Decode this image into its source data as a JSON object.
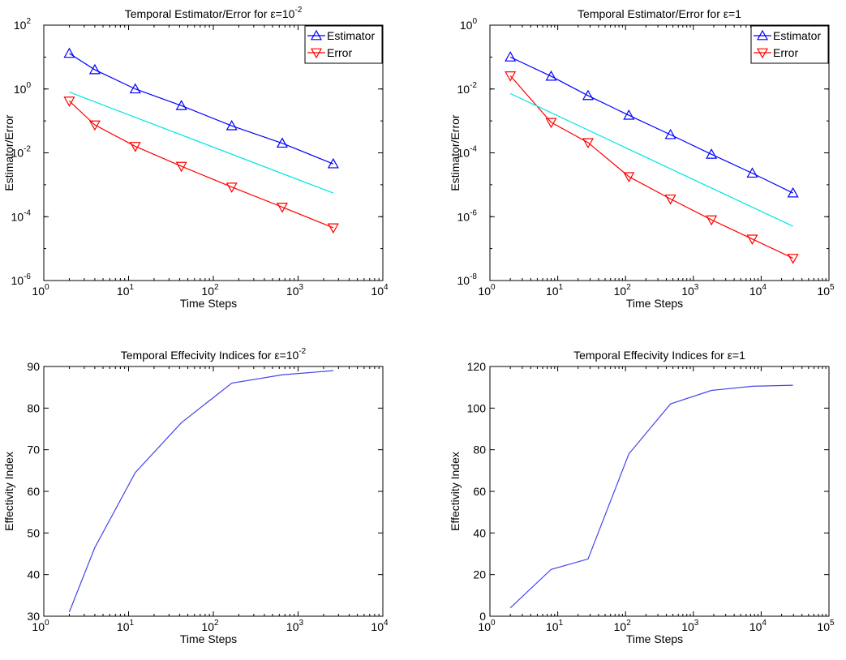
{
  "chart_data": [
    {
      "type": "line",
      "title": "Temporal Estimator/Error for ε=10",
      "title_sup": "-2",
      "xlabel": "Time Steps",
      "ylabel": "Estimator/Error",
      "xscale": "log",
      "yscale": "log",
      "xlim": [
        1,
        10000
      ],
      "ylim": [
        1e-06,
        100
      ],
      "x_ticks": [
        1,
        10,
        100,
        1000,
        10000
      ],
      "x_tick_labels": [
        {
          "base": "10",
          "exp": "0"
        },
        {
          "base": "10",
          "exp": "1"
        },
        {
          "base": "10",
          "exp": "2"
        },
        {
          "base": "10",
          "exp": "3"
        },
        {
          "base": "10",
          "exp": "4"
        }
      ],
      "y_ticks": [
        1e-06,
        0.0001,
        0.01,
        1,
        100
      ],
      "y_tick_labels": [
        {
          "base": "10",
          "exp": "-6"
        },
        {
          "base": "10",
          "exp": "-4"
        },
        {
          "base": "10",
          "exp": "-2"
        },
        {
          "base": "10",
          "exp": "0"
        },
        {
          "base": "10",
          "exp": "2"
        }
      ],
      "legend_position": "top-right",
      "grid": false,
      "series": [
        {
          "name": "Estimator",
          "color": "#0000ff",
          "marker": "triangle-up",
          "x": [
            2,
            4,
            12,
            42,
            165,
            650,
            2600
          ],
          "y": [
            13,
            4,
            1,
            0.3,
            0.07,
            0.02,
            0.0045
          ]
        },
        {
          "name": "Error",
          "color": "#ff0000",
          "marker": "triangle-down",
          "x": [
            2,
            4,
            12,
            42,
            165,
            650,
            2600
          ],
          "y": [
            0.42,
            0.075,
            0.016,
            0.0038,
            0.00085,
            0.0002,
            4.5e-05
          ]
        },
        {
          "name": "",
          "color": "#00e5e5",
          "marker": "none",
          "legend": false,
          "x": [
            2,
            2600
          ],
          "y": [
            0.8,
            0.00055
          ]
        }
      ]
    },
    {
      "type": "line",
      "title": "Temporal Estimator/Error for ε=1",
      "title_sup": "",
      "xlabel": "Time Steps",
      "ylabel": "Estimator/Error",
      "xscale": "log",
      "yscale": "log",
      "xlim": [
        1,
        100000
      ],
      "ylim": [
        1e-08,
        1
      ],
      "x_ticks": [
        1,
        10,
        100,
        1000,
        10000,
        100000
      ],
      "x_tick_labels": [
        {
          "base": "10",
          "exp": "0"
        },
        {
          "base": "10",
          "exp": "1"
        },
        {
          "base": "10",
          "exp": "2"
        },
        {
          "base": "10",
          "exp": "3"
        },
        {
          "base": "10",
          "exp": "4"
        },
        {
          "base": "10",
          "exp": "5"
        }
      ],
      "y_ticks": [
        1e-08,
        1e-06,
        0.0001,
        0.01,
        1
      ],
      "y_tick_labels": [
        {
          "base": "10",
          "exp": "-8"
        },
        {
          "base": "10",
          "exp": "-6"
        },
        {
          "base": "10",
          "exp": "-4"
        },
        {
          "base": "10",
          "exp": "-2"
        },
        {
          "base": "10",
          "exp": "0"
        }
      ],
      "legend_position": "top-right",
      "grid": false,
      "series": [
        {
          "name": "Estimator",
          "color": "#0000ff",
          "marker": "triangle-up",
          "x": [
            2,
            8,
            28,
            112,
            460,
            1850,
            7400,
            29500
          ],
          "y": [
            0.1,
            0.025,
            0.0062,
            0.0015,
            0.00037,
            9e-05,
            2.3e-05,
            5.5e-06
          ]
        },
        {
          "name": "Error",
          "color": "#ff0000",
          "marker": "triangle-down",
          "x": [
            2,
            8,
            28,
            112,
            460,
            1850,
            7400,
            29500
          ],
          "y": [
            0.026,
            0.0009,
            0.00021,
            1.8e-05,
            3.6e-06,
            8e-07,
            2e-07,
            5e-08
          ]
        },
        {
          "name": "",
          "color": "#00e5e5",
          "marker": "none",
          "legend": false,
          "x": [
            2,
            29500
          ],
          "y": [
            0.0072,
            5e-07
          ]
        }
      ]
    },
    {
      "type": "line",
      "title": "Temporal Effecivity Indices for ε=10",
      "title_sup": "-2",
      "xlabel": "Time Steps",
      "ylabel": "Effectivity Index",
      "xscale": "log",
      "yscale": "linear",
      "xlim": [
        1,
        10000
      ],
      "ylim": [
        30,
        90
      ],
      "x_ticks": [
        1,
        10,
        100,
        1000,
        10000
      ],
      "x_tick_labels": [
        {
          "base": "10",
          "exp": "0"
        },
        {
          "base": "10",
          "exp": "1"
        },
        {
          "base": "10",
          "exp": "2"
        },
        {
          "base": "10",
          "exp": "3"
        },
        {
          "base": "10",
          "exp": "4"
        }
      ],
      "y_ticks": [
        30,
        40,
        50,
        60,
        70,
        80,
        90
      ],
      "y_tick_labels": [
        {
          "base": "30",
          "exp": ""
        },
        {
          "base": "40",
          "exp": ""
        },
        {
          "base": "50",
          "exp": ""
        },
        {
          "base": "60",
          "exp": ""
        },
        {
          "base": "70",
          "exp": ""
        },
        {
          "base": "80",
          "exp": ""
        },
        {
          "base": "90",
          "exp": ""
        }
      ],
      "legend_position": "none",
      "grid": false,
      "series": [
        {
          "name": "",
          "color": "#4444ee",
          "marker": "none",
          "x": [
            2,
            4,
            12,
            42,
            165,
            650,
            2600
          ],
          "y": [
            31,
            46.5,
            64.5,
            76.5,
            86,
            88,
            89
          ]
        }
      ]
    },
    {
      "type": "line",
      "title": "Temporal Effecivity Indices for ε=1",
      "title_sup": "",
      "xlabel": "Time Steps",
      "ylabel": "Effectivity Index",
      "xscale": "log",
      "yscale": "linear",
      "xlim": [
        1,
        100000
      ],
      "ylim": [
        0,
        120
      ],
      "x_ticks": [
        1,
        10,
        100,
        1000,
        10000,
        100000
      ],
      "x_tick_labels": [
        {
          "base": "10",
          "exp": "0"
        },
        {
          "base": "10",
          "exp": "1"
        },
        {
          "base": "10",
          "exp": "2"
        },
        {
          "base": "10",
          "exp": "3"
        },
        {
          "base": "10",
          "exp": "4"
        },
        {
          "base": "10",
          "exp": "5"
        }
      ],
      "y_ticks": [
        0,
        20,
        40,
        60,
        80,
        100,
        120
      ],
      "y_tick_labels": [
        {
          "base": "0",
          "exp": ""
        },
        {
          "base": "20",
          "exp": ""
        },
        {
          "base": "40",
          "exp": ""
        },
        {
          "base": "60",
          "exp": ""
        },
        {
          "base": "80",
          "exp": ""
        },
        {
          "base": "100",
          "exp": ""
        },
        {
          "base": "120",
          "exp": ""
        }
      ],
      "legend_position": "none",
      "grid": false,
      "series": [
        {
          "name": "",
          "color": "#4444ee",
          "marker": "none",
          "x": [
            2,
            8,
            28,
            112,
            460,
            1850,
            7400,
            29500
          ],
          "y": [
            4,
            22.5,
            27.5,
            78,
            102,
            108.5,
            110.5,
            111
          ]
        }
      ]
    }
  ]
}
